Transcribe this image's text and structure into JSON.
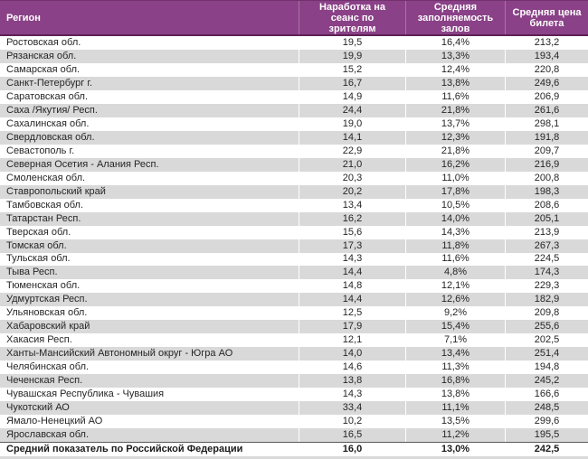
{
  "chart_data": {
    "type": "table",
    "columns": [
      "Регион",
      "Наработка на\nсеанс по\nзрителям",
      "Средняя\nзаполняемость\nзалов",
      "Средняя цена\nбилета"
    ],
    "rows": [
      [
        "Ростовская обл.",
        "19,5",
        "16,4%",
        "213,2"
      ],
      [
        "Рязанская обл.",
        "19,9",
        "13,3%",
        "193,4"
      ],
      [
        "Самарская обл.",
        "15,2",
        "12,4%",
        "220,8"
      ],
      [
        "Санкт-Петербург г.",
        "16,7",
        "13,8%",
        "249,6"
      ],
      [
        "Саратовская обл.",
        "14,9",
        "11,6%",
        "206,9"
      ],
      [
        "Саха /Якутия/ Респ.",
        "24,4",
        "21,8%",
        "261,6"
      ],
      [
        "Сахалинская обл.",
        "19,0",
        "13,7%",
        "298,1"
      ],
      [
        "Свердловская обл.",
        "14,1",
        "12,3%",
        "191,8"
      ],
      [
        "Севастополь г.",
        "22,9",
        "21,8%",
        "209,7"
      ],
      [
        "Северная Осетия - Алания Респ.",
        "21,0",
        "16,2%",
        "216,9"
      ],
      [
        "Смоленская обл.",
        "20,3",
        "11,0%",
        "200,8"
      ],
      [
        "Ставропольский край",
        "20,2",
        "17,8%",
        "198,3"
      ],
      [
        "Тамбовская обл.",
        "13,4",
        "10,5%",
        "208,6"
      ],
      [
        "Татарстан Респ.",
        "16,2",
        "14,0%",
        "205,1"
      ],
      [
        "Тверская обл.",
        "15,6",
        "14,3%",
        "213,9"
      ],
      [
        "Томская обл.",
        "17,3",
        "11,8%",
        "267,3"
      ],
      [
        "Тульская обл.",
        "14,3",
        "11,6%",
        "224,5"
      ],
      [
        "Тыва Респ.",
        "14,4",
        "4,8%",
        "174,3"
      ],
      [
        "Тюменская обл.",
        "14,8",
        "12,1%",
        "229,3"
      ],
      [
        "Удмуртская Респ.",
        "14,4",
        "12,6%",
        "182,9"
      ],
      [
        "Ульяновская обл.",
        "12,5",
        "9,2%",
        "209,8"
      ],
      [
        "Хабаровский край",
        "17,9",
        "15,4%",
        "255,6"
      ],
      [
        "Хакасия Респ.",
        "12,1",
        "7,1%",
        "202,5"
      ],
      [
        "Ханты-Мансийский Автономный округ - Югра АО",
        "14,0",
        "13,4%",
        "251,4"
      ],
      [
        "Челябинская обл.",
        "14,6",
        "11,3%",
        "194,8"
      ],
      [
        "Чеченская Респ.",
        "13,8",
        "16,8%",
        "245,2"
      ],
      [
        "Чувашская Республика - Чувашия",
        "14,3",
        "13,8%",
        "166,6"
      ],
      [
        "Чукотский АО",
        "33,4",
        "11,1%",
        "248,5"
      ],
      [
        "Ямало-Ненецкий АО",
        "10,2",
        "13,5%",
        "299,6"
      ],
      [
        "Ярославская обл.",
        "16,5",
        "11,2%",
        "195,5"
      ]
    ],
    "total_row": {
      "label": "Средний показатель по Российской Федерации",
      "per_session": "16,0",
      "occupancy": "13,0%",
      "price": "242,5"
    }
  },
  "colors": {
    "header_bg": "#8a4187",
    "header_text": "#ffffff",
    "header_separator": "#a875a3",
    "header_border_bottom": "#5e2156",
    "stripe": "#d9d9d9",
    "body_text": "#262626",
    "total_border_top": "#595959"
  }
}
